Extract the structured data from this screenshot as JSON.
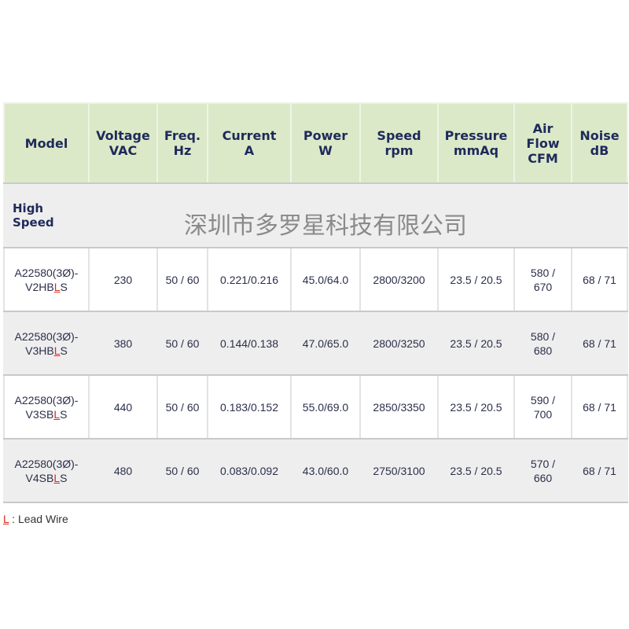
{
  "headers": [
    [
      "Model",
      ""
    ],
    [
      "Voltage",
      "VAC"
    ],
    [
      "Freq.",
      "Hz"
    ],
    [
      "Current",
      "A"
    ],
    [
      "Power",
      "W"
    ],
    [
      "Speed",
      "rpm"
    ],
    [
      "Pressure",
      "mmAq"
    ],
    [
      "Air",
      "Flow",
      "CFM"
    ],
    [
      "Noise",
      "dB"
    ]
  ],
  "section": {
    "line1": "High",
    "line2": "Speed",
    "watermark": "深圳市多罗星科技有限公司"
  },
  "rows": [
    {
      "model1": "A22580(3Ø)-",
      "model2a": "V2HB",
      "modelL": "L",
      "model2b": "S",
      "voltage": "230",
      "freq": "50 / 60",
      "current": "0.221/0.216",
      "power": "45.0/64.0",
      "speed": "2800/3200",
      "pressure": "23.5 / 20.5",
      "flow1": "580 /",
      "flow2": "670",
      "noise": "68 / 71"
    },
    {
      "model1": "A22580(3Ø)-",
      "model2a": "V3HB",
      "modelL": "L",
      "model2b": "S",
      "voltage": "380",
      "freq": "50 / 60",
      "current": "0.144/0.138",
      "power": "47.0/65.0",
      "speed": "2800/3250",
      "pressure": "23.5 / 20.5",
      "flow1": "580 /",
      "flow2": "680",
      "noise": "68 / 71"
    },
    {
      "model1": "A22580(3Ø)-",
      "model2a": "V3SB",
      "modelL": "L",
      "model2b": "S",
      "voltage": "440",
      "freq": "50 / 60",
      "current": "0.183/0.152",
      "power": "55.0/69.0",
      "speed": "2850/3350",
      "pressure": "23.5 / 20.5",
      "flow1": "590 /",
      "flow2": "700",
      "noise": "68 / 71"
    },
    {
      "model1": "A22580(3Ø)-",
      "model2a": "V4SB",
      "modelL": "L",
      "model2b": "S",
      "voltage": "480",
      "freq": "50 / 60",
      "current": "0.083/0.092",
      "power": "43.0/60.0",
      "speed": "2750/3100",
      "pressure": "23.5 / 20.5",
      "flow1": "570 /",
      "flow2": "660",
      "noise": "68 / 71"
    }
  ],
  "footer": {
    "key": "L",
    "text": " : Lead Wire"
  },
  "colors": {
    "header_bg": "#dbe9c8",
    "header_text": "#1e2a5a",
    "alt_row": "#eeeeee",
    "lead_wire_red": "#e0271a"
  }
}
